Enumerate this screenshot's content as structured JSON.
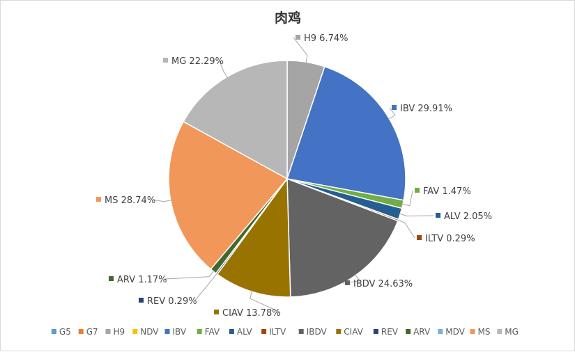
{
  "chart_data": {
    "type": "pie",
    "title": "肉鸡",
    "legend_position": "bottom",
    "slices": [
      {
        "name": "G5",
        "value": 0,
        "label": "",
        "color": "#5B9BD5"
      },
      {
        "name": "G7",
        "value": 0,
        "label": "",
        "color": "#ED7D31"
      },
      {
        "name": "H9",
        "value": 6.74,
        "label": "H9 6.74%",
        "color": "#A5A5A5"
      },
      {
        "name": "NDV",
        "value": 0,
        "label": "",
        "color": "#FFC000"
      },
      {
        "name": "IBV",
        "value": 29.91,
        "label": "IBV 29.91%",
        "color": "#4472C4"
      },
      {
        "name": "FAV",
        "value": 1.47,
        "label": "FAV 1.47%",
        "color": "#70AD47"
      },
      {
        "name": "ALV",
        "value": 2.05,
        "label": "ALV 2.05%",
        "color": "#255E91"
      },
      {
        "name": "ILTV",
        "value": 0.29,
        "label": "ILTV 0.29%",
        "color": "#9E480E"
      },
      {
        "name": "IBDV",
        "value": 24.63,
        "label": "IBDV 24.63%",
        "color": "#636363"
      },
      {
        "name": "CIAV",
        "value": 13.78,
        "label": "CIAV 13.78%",
        "color": "#997300"
      },
      {
        "name": "REV",
        "value": 0.29,
        "label": "REV 0.29%",
        "color": "#264478"
      },
      {
        "name": "ARV",
        "value": 1.17,
        "label": "ARV 1.17%",
        "color": "#43682B"
      },
      {
        "name": "MDV",
        "value": 0,
        "label": "",
        "color": "#7CAFDD"
      },
      {
        "name": "MS",
        "value": 28.74,
        "label": "MS 28.74%",
        "color": "#F1975A"
      },
      {
        "name": "MG",
        "value": 22.29,
        "label": "MG 22.29%",
        "color": "#B7B7B7"
      }
    ]
  }
}
